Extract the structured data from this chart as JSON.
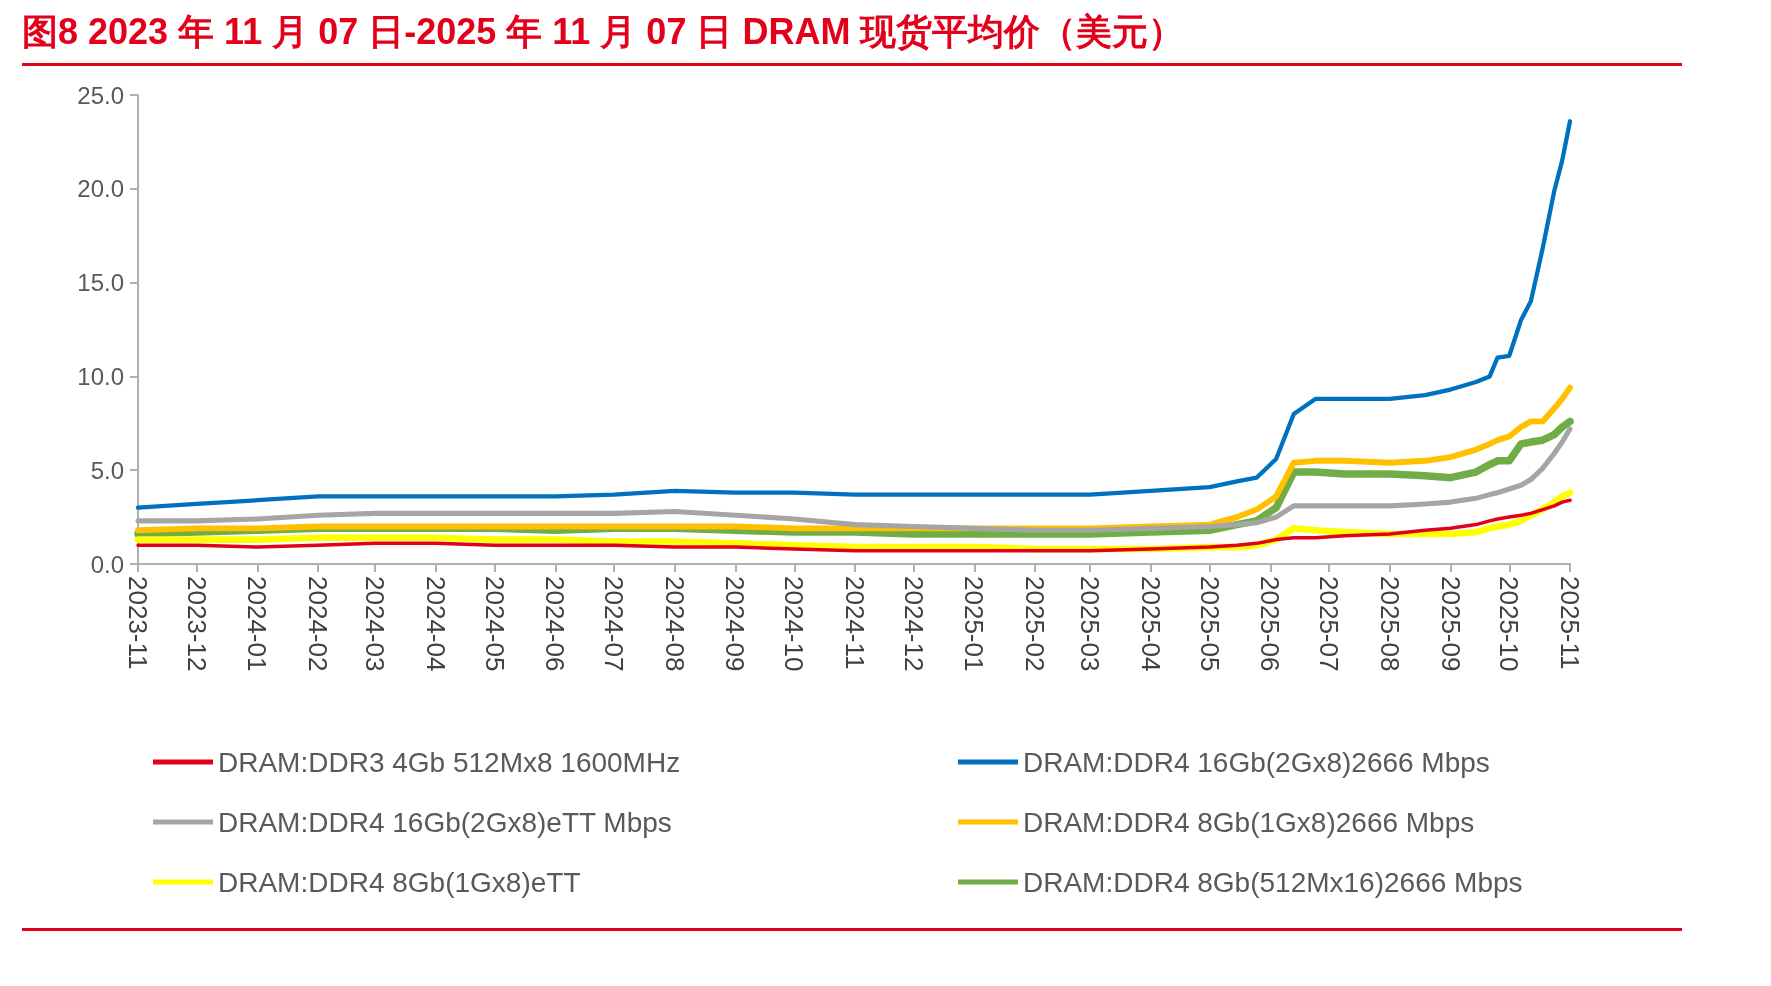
{
  "chart_data": {
    "type": "line",
    "title": "图8  2023 年 11 月 07 日-2025 年 11 月 07 日 DRAM 现货平均价（美元）",
    "x": [
      "2023-11-07",
      "2023-12-07",
      "2024-01-07",
      "2024-02-07",
      "2024-03-07",
      "2024-04-07",
      "2024-05-07",
      "2024-06-07",
      "2024-07-07",
      "2024-08-07",
      "2024-09-07",
      "2024-10-07",
      "2024-11-07",
      "2024-12-07",
      "2025-01-07",
      "2025-02-07",
      "2025-03-07",
      "2025-04-07",
      "2025-05-07",
      "2025-05-21",
      "2025-05-31",
      "2025-06-10",
      "2025-06-19",
      "2025-06-30",
      "2025-07-15",
      "2025-08-07",
      "2025-08-25",
      "2025-09-07",
      "2025-09-20",
      "2025-09-27",
      "2025-10-01",
      "2025-10-07",
      "2025-10-13",
      "2025-10-18",
      "2025-10-24",
      "2025-10-30",
      "2025-11-03",
      "2025-11-07"
    ],
    "series": [
      {
        "name": "DRAM:DDR3 4Gb 512Mx8 1600MHz",
        "color": "#e3001b",
        "values": [
          1.0,
          1.0,
          0.9,
          1.0,
          1.1,
          1.1,
          1.0,
          1.0,
          1.0,
          0.9,
          0.9,
          0.8,
          0.7,
          0.7,
          0.7,
          0.7,
          0.7,
          0.8,
          0.9,
          1.0,
          1.1,
          1.3,
          1.4,
          1.4,
          1.5,
          1.6,
          1.8,
          1.9,
          2.1,
          2.3,
          2.4,
          2.5,
          2.6,
          2.7,
          2.9,
          3.1,
          3.3,
          3.4
        ]
      },
      {
        "name": "DRAM:DDR4 16Gb(2Gx8)2666 Mbps",
        "color": "#0070c0",
        "values": [
          3.0,
          3.2,
          3.4,
          3.6,
          3.6,
          3.6,
          3.6,
          3.6,
          3.7,
          3.9,
          3.8,
          3.8,
          3.7,
          3.7,
          3.7,
          3.7,
          3.7,
          3.9,
          4.1,
          4.4,
          4.6,
          5.6,
          8.0,
          8.8,
          8.8,
          8.8,
          9.0,
          9.3,
          9.7,
          10.0,
          11.0,
          11.1,
          13.0,
          14.0,
          16.8,
          19.9,
          21.5,
          23.6
        ]
      },
      {
        "name": "DRAM:DDR4 16Gb(2Gx8)eTT Mbps",
        "color": "#a5a5a5",
        "values": [
          2.3,
          2.3,
          2.4,
          2.6,
          2.7,
          2.7,
          2.7,
          2.7,
          2.7,
          2.8,
          2.6,
          2.4,
          2.1,
          2.0,
          1.9,
          1.8,
          1.8,
          1.9,
          2.0,
          2.1,
          2.2,
          2.5,
          3.1,
          3.1,
          3.1,
          3.1,
          3.2,
          3.3,
          3.5,
          3.7,
          3.8,
          4.0,
          4.2,
          4.5,
          5.1,
          5.9,
          6.5,
          7.2
        ]
      },
      {
        "name": "DRAM:DDR4 8Gb(1Gx8)2666 Mbps",
        "color": "#ffc000",
        "values": [
          1.8,
          1.9,
          1.9,
          2.0,
          2.0,
          2.0,
          2.0,
          2.0,
          2.0,
          2.0,
          2.0,
          1.9,
          1.9,
          1.9,
          1.9,
          1.9,
          1.9,
          2.0,
          2.1,
          2.5,
          2.9,
          3.6,
          5.4,
          5.5,
          5.5,
          5.4,
          5.5,
          5.7,
          6.1,
          6.4,
          6.6,
          6.8,
          7.3,
          7.6,
          7.6,
          8.3,
          8.8,
          9.4
        ]
      },
      {
        "name": "DRAM:DDR4 8Gb(1Gx8)eTT",
        "color": "#ffff00",
        "values": [
          1.3,
          1.3,
          1.3,
          1.4,
          1.4,
          1.4,
          1.3,
          1.3,
          1.2,
          1.2,
          1.1,
          1.0,
          0.9,
          0.9,
          0.9,
          0.8,
          0.8,
          0.8,
          0.9,
          0.9,
          1.0,
          1.3,
          1.9,
          1.8,
          1.7,
          1.6,
          1.6,
          1.6,
          1.7,
          1.9,
          2.0,
          2.1,
          2.3,
          2.6,
          2.9,
          3.3,
          3.6,
          3.8
        ]
      },
      {
        "name": "DRAM:DDR4 8Gb(512Mx16)2666 Mbps",
        "color": "#70ad47",
        "values": [
          1.6,
          1.7,
          1.8,
          1.9,
          1.9,
          1.9,
          1.9,
          1.8,
          1.9,
          1.9,
          1.8,
          1.7,
          1.7,
          1.6,
          1.6,
          1.6,
          1.6,
          1.7,
          1.8,
          2.1,
          2.3,
          3.0,
          4.9,
          4.9,
          4.8,
          4.8,
          4.7,
          4.6,
          4.9,
          5.3,
          5.5,
          5.5,
          6.4,
          6.5,
          6.6,
          6.9,
          7.3,
          7.6
        ]
      }
    ],
    "xlim": [
      "2023-11-07",
      "2025-11-07"
    ],
    "xticks": [
      {
        "value": "2023-11-07",
        "label": "2023-11"
      },
      {
        "value": "2023-12-07",
        "label": "2023-12"
      },
      {
        "value": "2024-01-07",
        "label": "2024-01"
      },
      {
        "value": "2024-02-07",
        "label": "2024-02"
      },
      {
        "value": "2024-03-07",
        "label": "2024-03"
      },
      {
        "value": "2024-04-07",
        "label": "2024-04"
      },
      {
        "value": "2024-05-07",
        "label": "2024-05"
      },
      {
        "value": "2024-06-07",
        "label": "2024-06"
      },
      {
        "value": "2024-07-07",
        "label": "2024-07"
      },
      {
        "value": "2024-08-07",
        "label": "2024-08"
      },
      {
        "value": "2024-09-07",
        "label": "2024-09"
      },
      {
        "value": "2024-10-07",
        "label": "2024-10"
      },
      {
        "value": "2024-11-07",
        "label": "2024-11"
      },
      {
        "value": "2024-12-07",
        "label": "2024-12"
      },
      {
        "value": "2025-01-07",
        "label": "2025-01"
      },
      {
        "value": "2025-02-07",
        "label": "2025-02"
      },
      {
        "value": "2025-03-07",
        "label": "2025-03"
      },
      {
        "value": "2025-04-07",
        "label": "2025-04"
      },
      {
        "value": "2025-05-07",
        "label": "2025-05"
      },
      {
        "value": "2025-06-07",
        "label": "2025-06"
      },
      {
        "value": "2025-07-07",
        "label": "2025-07"
      },
      {
        "value": "2025-08-07",
        "label": "2025-08"
      },
      {
        "value": "2025-09-07",
        "label": "2025-09"
      },
      {
        "value": "2025-10-07",
        "label": "2025-10"
      },
      {
        "value": "2025-11-07",
        "label": "2025-11"
      }
    ],
    "ylim": [
      0,
      25
    ],
    "yticks": [
      {
        "value": 0,
        "label": "0.0"
      },
      {
        "value": 5,
        "label": "5.0"
      },
      {
        "value": 10,
        "label": "10.0"
      },
      {
        "value": 15,
        "label": "15.0"
      },
      {
        "value": 20,
        "label": "20.0"
      },
      {
        "value": 25,
        "label": "25.0"
      }
    ],
    "grid": false,
    "legend": "bottom",
    "marker": "none",
    "line_style": "solid"
  }
}
